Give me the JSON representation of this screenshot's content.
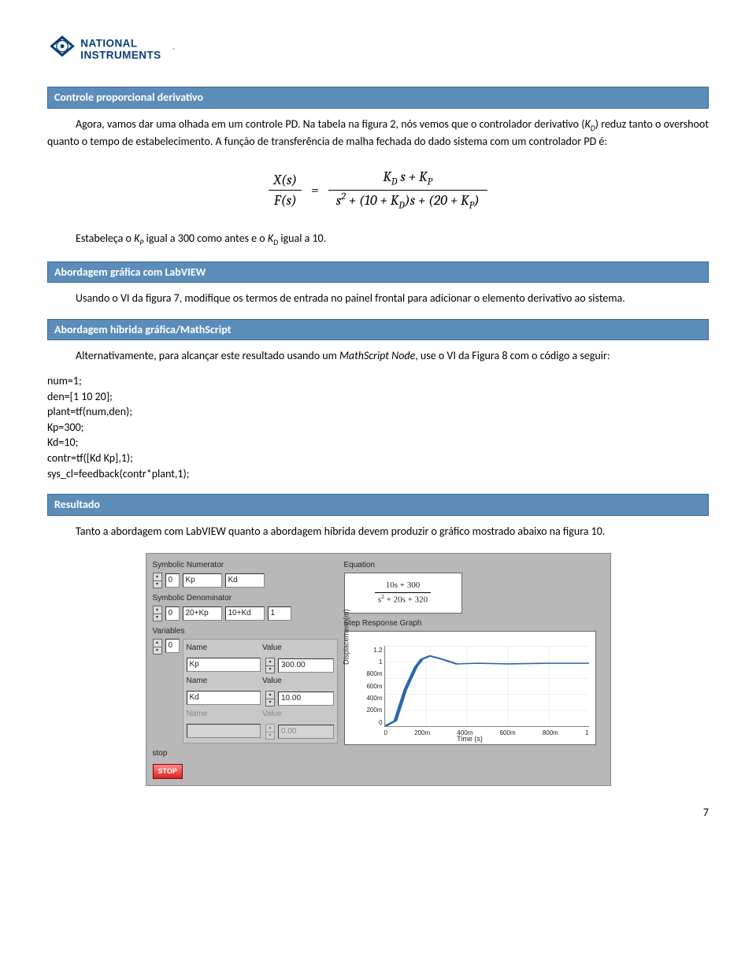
{
  "logo": {
    "top": "NATIONAL",
    "bottom": "INSTRUMENTS",
    "tm": "™"
  },
  "headings": {
    "h1": "Controle proporcional derivativo",
    "h2": "Abordagem gráfica com LabVIEW",
    "h3": "Abordagem híbrida gráfica/MathScript",
    "h4": "Resultado"
  },
  "para": {
    "p1a": "Agora, vamos dar uma olhada em um controle PD. Na tabela na figura 2, nós vemos que o controlador derivativo (",
    "p1b": ") reduz tanto o overshoot quanto o tempo de estabelecimento. A função de transferência de malha fechada do dado sistema com um controlador PD é:",
    "p2a": "Estabeleça o ",
    "p2b": " igual a 300 como antes e o ",
    "p2c": " igual a 10.",
    "p3": "Usando o VI da figura 7, modifique os termos de entrada no painel frontal para adicionar o elemento derivativo ao sistema.",
    "p4a": "Alternativamente, para alcançar este resultado usando um ",
    "p4i": "MathScript Node",
    "p4b": ", use o VI da Figura 8 com o código a seguir:",
    "p5": "Tanto a abordagem com LabVIEW quanto a abordagem híbrida devem produzir o gráfico mostrado abaixo na figura 10."
  },
  "equation": {
    "lhs_num": "X(s)",
    "lhs_den": "F(s)",
    "rhs_num": "K_D s + K_P",
    "rhs_den": "s² + (10 + K_D)s + (20 + K_P)"
  },
  "symbols": {
    "KD": "K_D",
    "KP": "K_P"
  },
  "code": "num=1;\nden=[1 10 20];\nplant=tf(num,den);\nKp=300;\nKd=10;\ncontr=tf([Kd Kp],1);\nsys_cl=feedback(contr*plant,1);",
  "labview": {
    "labels": {
      "symnum": "Symbolic Numerator",
      "symden": "Symbolic Denominator",
      "vars": "Variables",
      "name": "Name",
      "value": "Value",
      "eq": "Equation",
      "graph": "Step Response Graph",
      "ylabel": "Displacement (m)",
      "xlabel": "Time (s)",
      "stop": "stop",
      "stopbtn": "STOP"
    },
    "spin0": "0",
    "numfields": [
      "Kp",
      "Kd"
    ],
    "denfields": [
      "20+Kp",
      "10+Kd",
      "1"
    ],
    "vars_rows": [
      {
        "name": "Kp",
        "value": "300.00"
      },
      {
        "name": "Kd",
        "value": "10.00"
      },
      {
        "name": "",
        "value": "0.00"
      }
    ],
    "equation": {
      "num": "10s + 300",
      "den": "s² + 20s + 320"
    },
    "graph": {
      "yticks": [
        "1.2",
        "1",
        "800m",
        "600m",
        "400m",
        "200m",
        "0"
      ],
      "xticks": [
        "0",
        "200m",
        "400m",
        "600m",
        "800m",
        "1"
      ],
      "series_color": "#2a68b0",
      "series_points": [
        [
          0,
          0
        ],
        [
          5,
          8
        ],
        [
          10,
          55
        ],
        [
          15,
          88
        ],
        [
          18,
          100
        ],
        [
          22,
          105
        ],
        [
          28,
          100
        ],
        [
          35,
          93
        ],
        [
          45,
          94
        ],
        [
          60,
          93
        ],
        [
          80,
          94
        ],
        [
          100,
          94
        ]
      ]
    }
  },
  "page_number": "7",
  "colors": {
    "heading_bg": "#5b8db8",
    "heading_border": "#3a6a96",
    "logo_blue": "#0a3f7a"
  }
}
